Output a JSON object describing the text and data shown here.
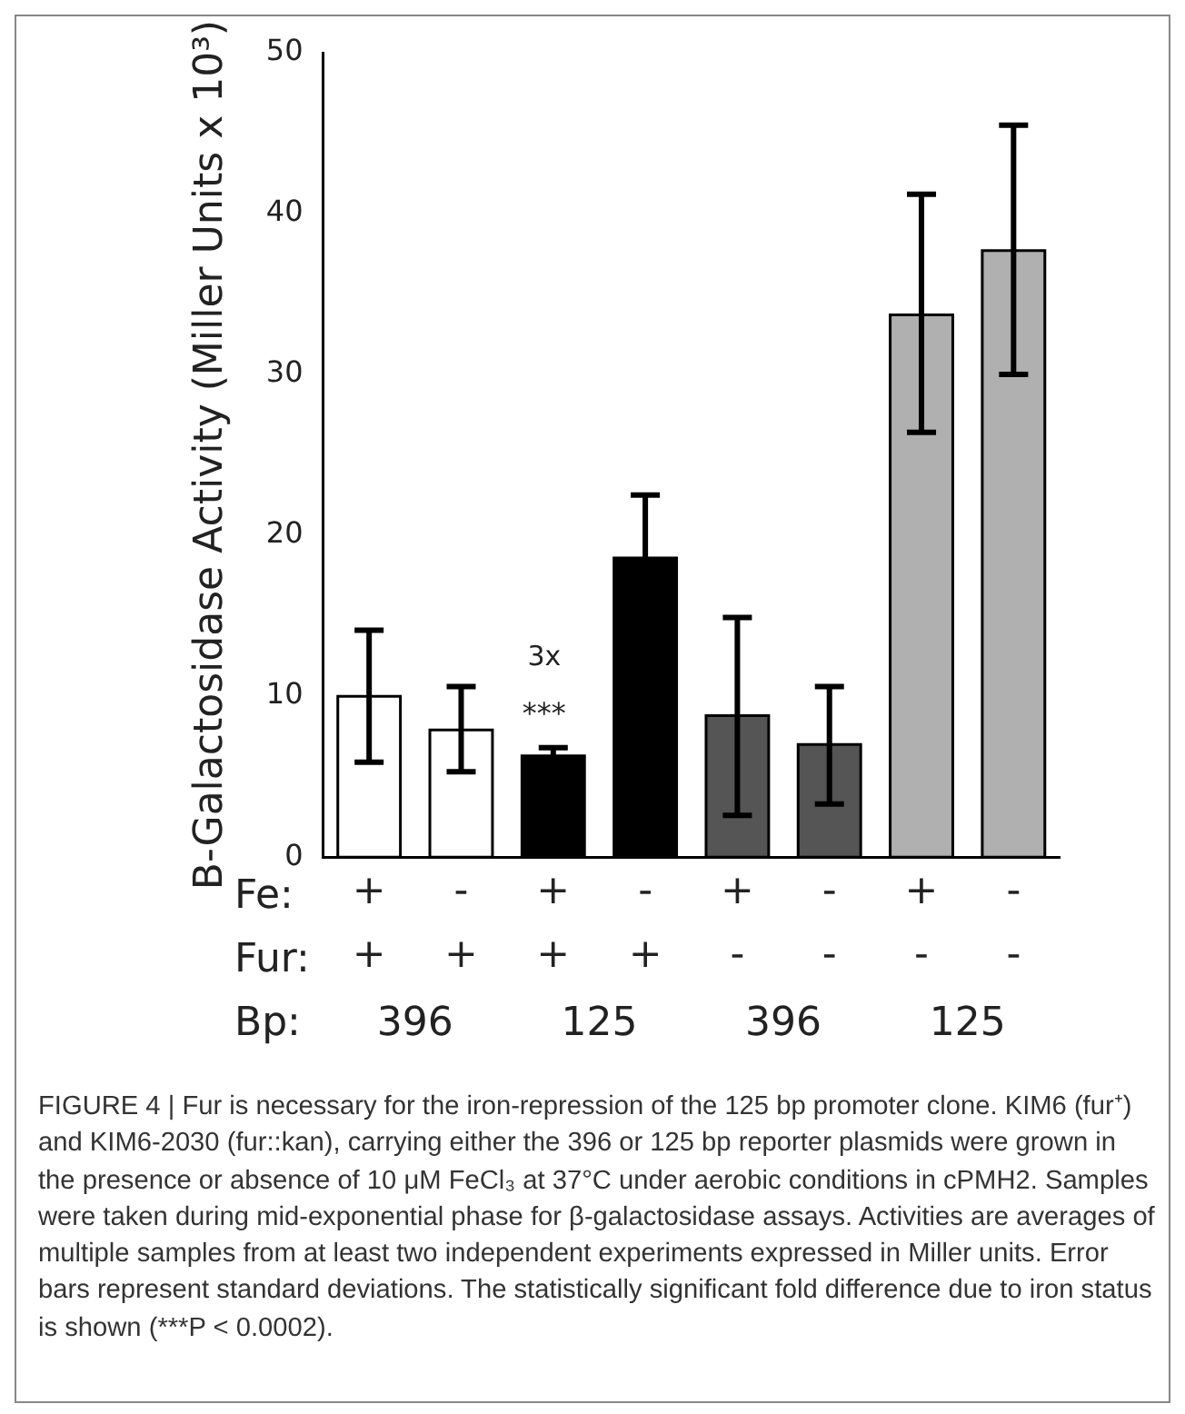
{
  "chart_data": {
    "type": "bar",
    "ylabel": "B-Galactosidase Activity (Miller Units x 10³)",
    "categories": [
      "+\n+",
      "-\n+",
      "+\n+",
      "-\n+",
      "+\n-",
      "-\n-",
      "+\n-",
      "-\n-"
    ],
    "values": [
      10.0,
      7.9,
      6.3,
      18.6,
      8.8,
      7.0,
      33.7,
      37.7
    ],
    "colors": [
      "#ffffff",
      "#ffffff",
      "#000000",
      "#000000",
      "#555555",
      "#555555",
      "#b0b0b0",
      "#b0b0b0"
    ],
    "errors": [
      [
        5.9,
        14.1
      ],
      [
        5.3,
        10.6
      ],
      [
        6.3,
        6.8
      ],
      [
        18.6,
        22.5
      ],
      [
        2.6,
        14.9
      ],
      [
        3.3,
        10.6
      ],
      [
        26.4,
        41.2
      ],
      [
        30.0,
        45.5
      ]
    ],
    "ylim": [
      0,
      50
    ],
    "yticks": [
      0,
      10,
      20,
      30,
      40,
      50
    ],
    "grid": false,
    "legend": false,
    "annotations": [
      "3x",
      "***",
      "Fe:",
      "Fur:",
      "Bp:",
      "396",
      "125",
      "396",
      "125",
      "FIGURE 4 | Fur is necessary for the iron-repression of the 125 bp promoter clone. KIM6 (fur⁺) and KIM6-2030 (fur::kan), carrying either the 396 or 125 bp reporter plasmids were grown in the presence or absence of 10 μM FeCl₃ at 37°C under aerobic conditions in cPMH2. Samples were taken during mid-exponential phase for β-galactosidase assays. Activities are averages of multiple samples from at least two independent experiments expressed in Miller units. Error bars represent standard deviations. The statistically significant fold difference due to iron status is shown (***P < 0.0002)."
    ]
  }
}
